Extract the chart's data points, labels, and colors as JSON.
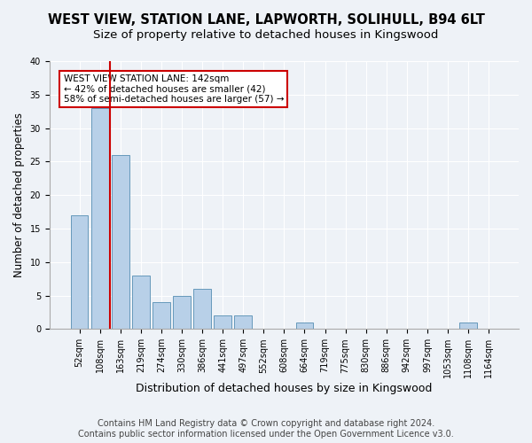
{
  "title": "WEST VIEW, STATION LANE, LAPWORTH, SOLIHULL, B94 6LT",
  "subtitle": "Size of property relative to detached houses in Kingswood",
  "xlabel": "Distribution of detached houses by size in Kingswood",
  "ylabel": "Number of detached properties",
  "bar_values": [
    17,
    33,
    26,
    8,
    4,
    5,
    6,
    2,
    2,
    0,
    0,
    1,
    0,
    0,
    0,
    0,
    0,
    0,
    0,
    1,
    0
  ],
  "categories": [
    "52sqm",
    "108sqm",
    "163sqm",
    "219sqm",
    "274sqm",
    "330sqm",
    "386sqm",
    "441sqm",
    "497sqm",
    "552sqm",
    "608sqm",
    "664sqm",
    "719sqm",
    "775sqm",
    "830sqm",
    "886sqm",
    "942sqm",
    "997sqm",
    "1053sqm",
    "1108sqm",
    "1164sqm"
  ],
  "bar_color": "#b8d0e8",
  "bar_edge_color": "#6699bb",
  "bar_width": 0.85,
  "reference_line_x": 1.5,
  "reference_line_color": "#cc0000",
  "annotation_title": "WEST VIEW STATION LANE: 142sqm",
  "annotation_line1": "← 42% of detached houses are smaller (42)",
  "annotation_line2": "58% of semi-detached houses are larger (57) →",
  "annotation_box_color": "#cc0000",
  "ylim": [
    0,
    40
  ],
  "yticks": [
    0,
    5,
    10,
    15,
    20,
    25,
    30,
    35,
    40
  ],
  "background_color": "#eef2f7",
  "plot_bg_color": "#eef2f7",
  "footer_line1": "Contains HM Land Registry data © Crown copyright and database right 2024.",
  "footer_line2": "Contains public sector information licensed under the Open Government Licence v3.0.",
  "title_fontsize": 10.5,
  "subtitle_fontsize": 9.5,
  "xlabel_fontsize": 9,
  "ylabel_fontsize": 8.5,
  "tick_fontsize": 7,
  "footer_fontsize": 7
}
